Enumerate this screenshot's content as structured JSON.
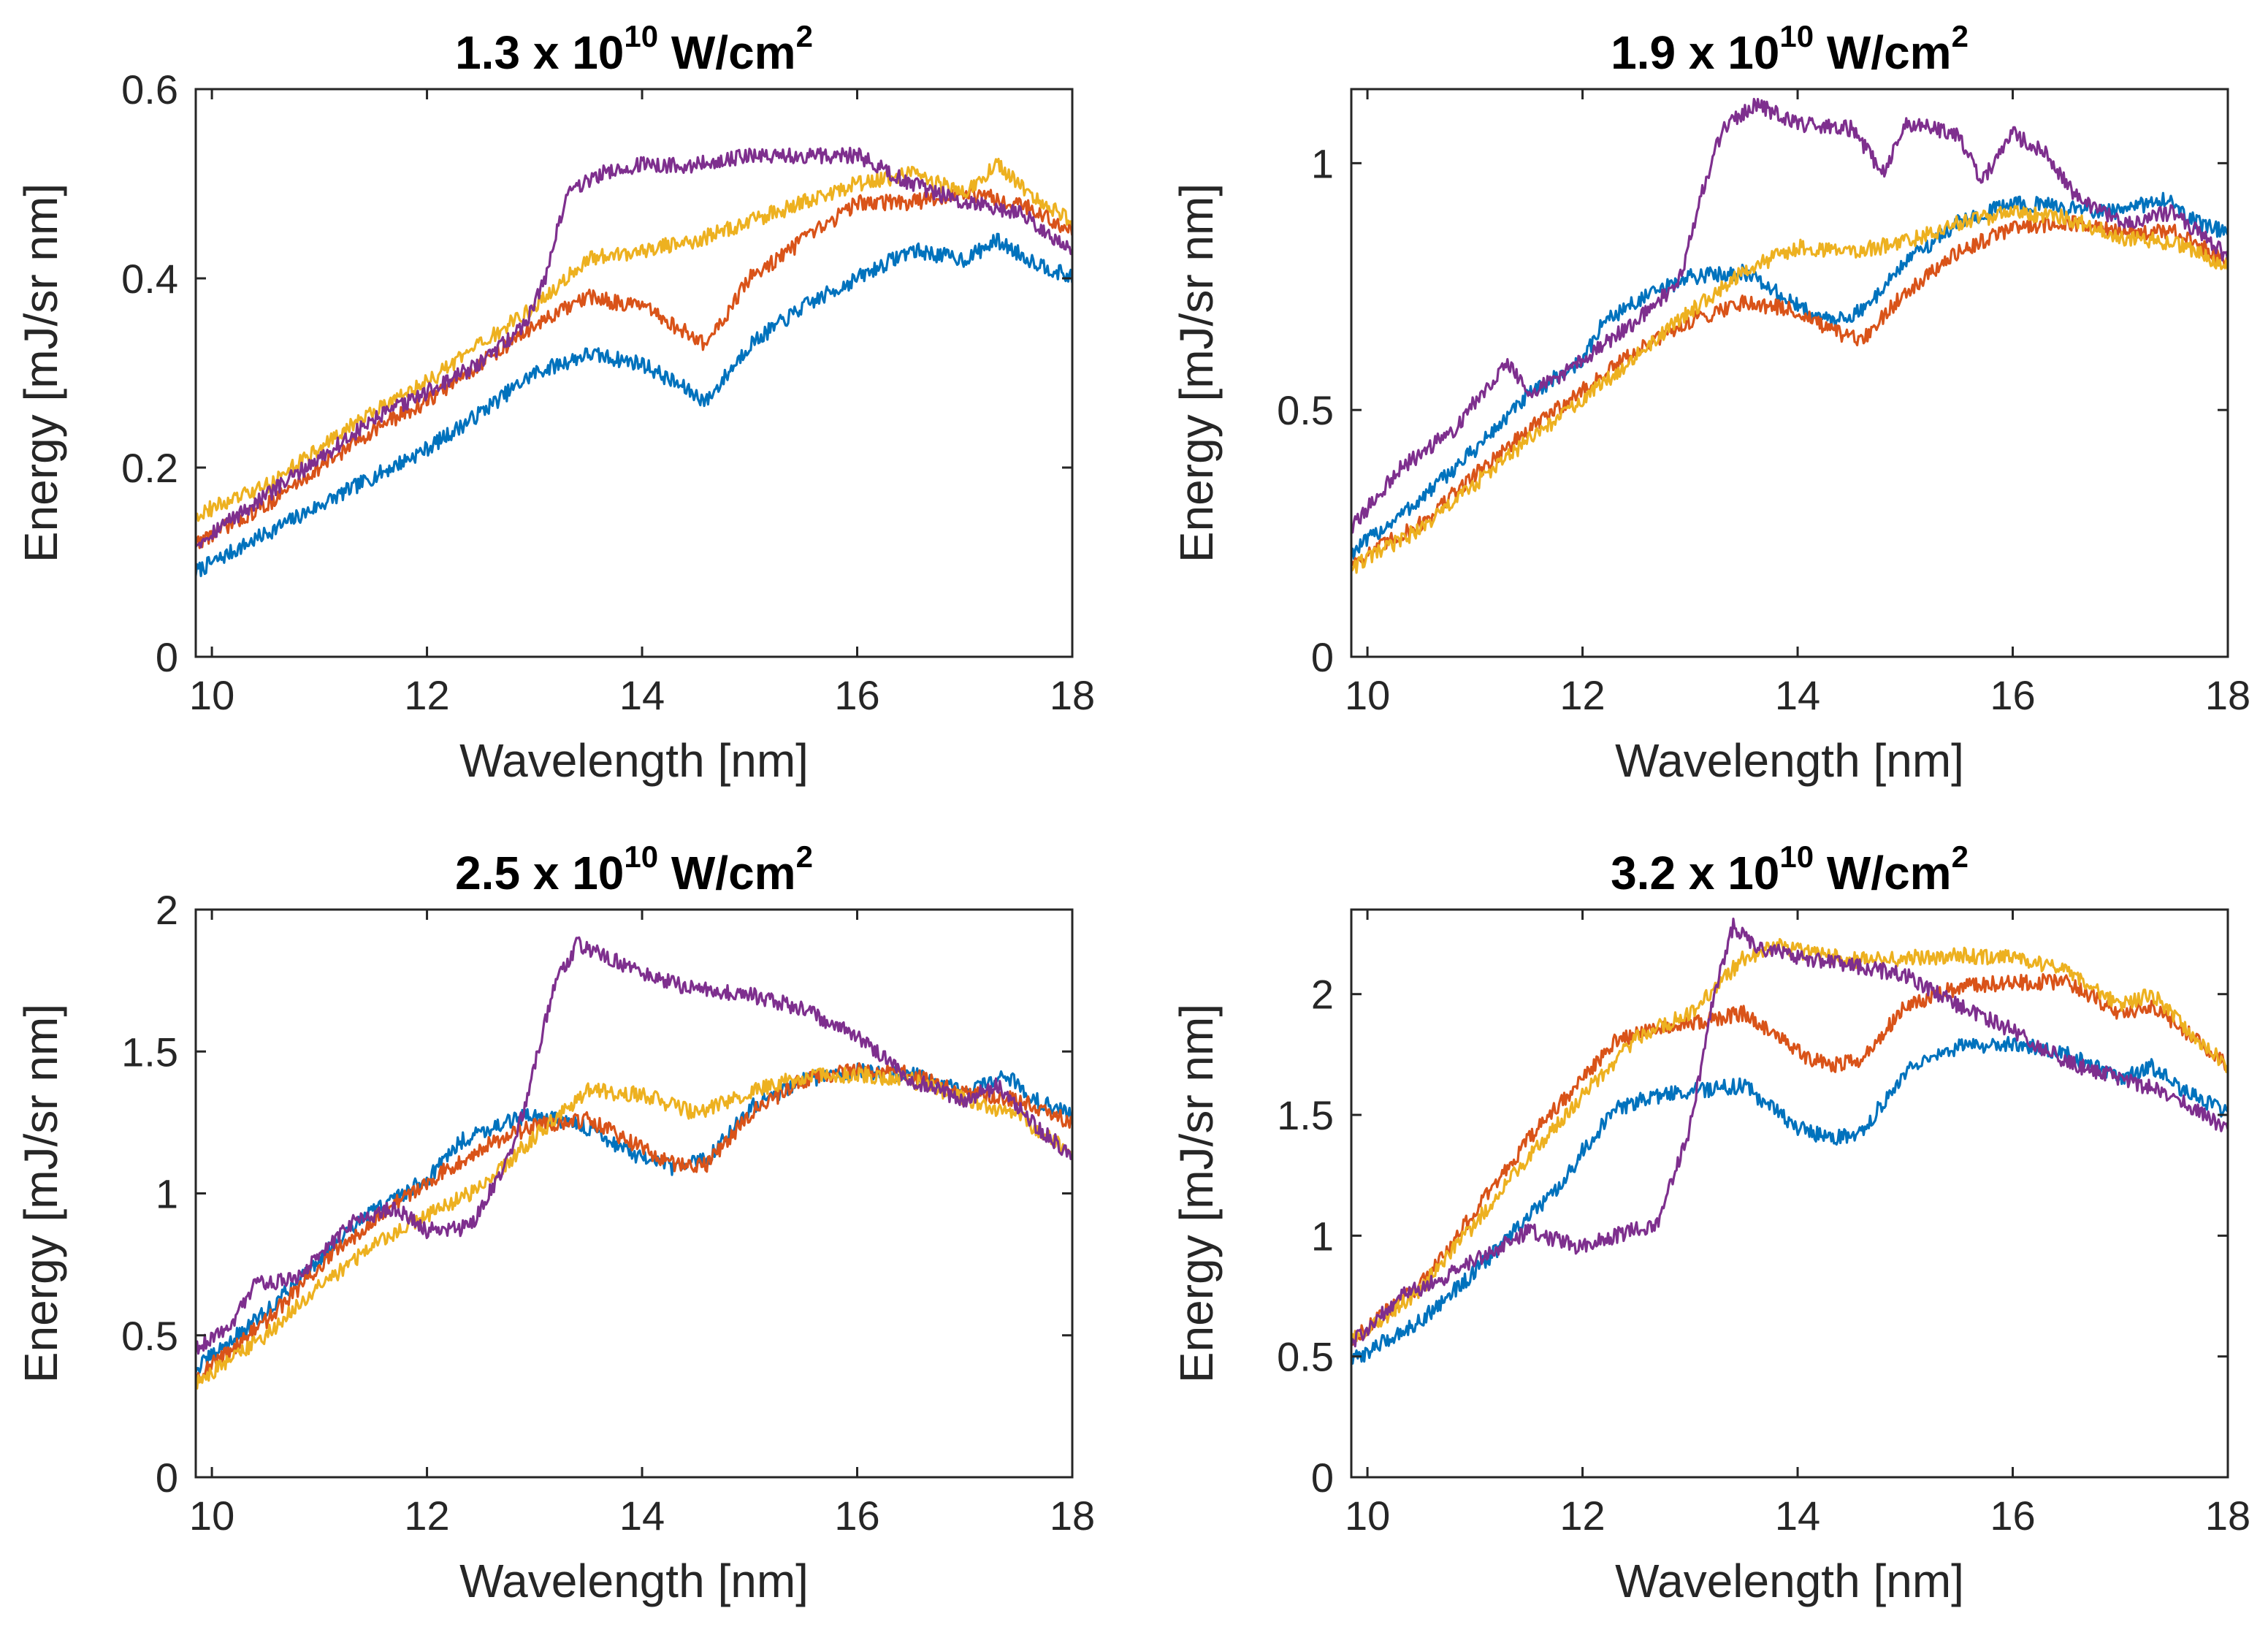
{
  "chart_data": [
    {
      "type": "line",
      "title": {
        "base": "1.3 x 10",
        "exponent": "10",
        "unit": " W/cm",
        "unit_exponent": "2"
      },
      "xlabel": "Wavelength [nm]",
      "ylabel": "Energy [mJ/sr nm]",
      "xlim": [
        9.85,
        18
      ],
      "ylim": [
        0,
        0.6
      ],
      "xticks": [
        "10",
        "12",
        "14",
        "16",
        "18"
      ],
      "yticks": [
        "0",
        "0.2",
        "0.4",
        "0.6"
      ],
      "grid": false,
      "series": [
        {
          "color": "#0072BD",
          "x": [
            9.85,
            10.5,
            11.0,
            11.5,
            12.0,
            12.4,
            13.0,
            13.5,
            14.0,
            14.3,
            14.6,
            15.0,
            15.5,
            16.0,
            16.5,
            17.0,
            17.3,
            17.6,
            18.0
          ],
          "y": [
            0.09,
            0.13,
            0.16,
            0.19,
            0.22,
            0.25,
            0.3,
            0.32,
            0.31,
            0.29,
            0.27,
            0.33,
            0.37,
            0.4,
            0.43,
            0.42,
            0.44,
            0.42,
            0.4
          ]
        },
        {
          "color": "#D95319",
          "x": [
            9.85,
            10.5,
            11.0,
            11.5,
            12.0,
            12.5,
            13.0,
            13.5,
            14.0,
            14.3,
            14.6,
            15.0,
            15.5,
            16.0,
            16.5,
            17.0,
            17.5,
            18.0
          ],
          "y": [
            0.12,
            0.16,
            0.2,
            0.24,
            0.27,
            0.31,
            0.35,
            0.38,
            0.37,
            0.35,
            0.33,
            0.4,
            0.44,
            0.48,
            0.48,
            0.49,
            0.48,
            0.45
          ]
        },
        {
          "color": "#EDB120",
          "x": [
            9.85,
            10.5,
            11.0,
            11.5,
            12.0,
            12.5,
            13.0,
            13.5,
            14.0,
            14.5,
            15.0,
            15.5,
            16.0,
            16.5,
            17.0,
            17.3,
            17.6,
            18.0
          ],
          "y": [
            0.15,
            0.18,
            0.22,
            0.26,
            0.29,
            0.33,
            0.37,
            0.42,
            0.43,
            0.44,
            0.46,
            0.48,
            0.5,
            0.51,
            0.49,
            0.52,
            0.49,
            0.46
          ]
        },
        {
          "color": "#7E2F8E",
          "x": [
            9.85,
            10.5,
            11.0,
            11.5,
            12.0,
            12.5,
            12.9,
            13.1,
            13.3,
            13.6,
            14.0,
            14.5,
            15.0,
            15.5,
            16.0,
            16.5,
            17.0,
            17.5,
            18.0
          ],
          "y": [
            0.12,
            0.17,
            0.21,
            0.25,
            0.28,
            0.31,
            0.35,
            0.4,
            0.49,
            0.51,
            0.52,
            0.52,
            0.53,
            0.53,
            0.53,
            0.5,
            0.48,
            0.47,
            0.43
          ]
        }
      ]
    },
    {
      "type": "line",
      "title": {
        "base": "1.9 x 10",
        "exponent": "10",
        "unit": " W/cm",
        "unit_exponent": "2"
      },
      "xlabel": "Wavelength [nm]",
      "ylabel": "Energy [mJ/sr nm]",
      "xlim": [
        9.85,
        18
      ],
      "ylim": [
        0,
        1.15
      ],
      "xticks": [
        "10",
        "12",
        "14",
        "16",
        "18"
      ],
      "yticks": [
        "0",
        "0.5",
        "1"
      ],
      "grid": false,
      "series": [
        {
          "color": "#0072BD",
          "x": [
            9.85,
            10.5,
            11.0,
            11.5,
            12.0,
            12.2,
            12.5,
            13.0,
            13.5,
            14.0,
            14.3,
            14.6,
            15.0,
            15.5,
            16.0,
            16.5,
            17.0,
            17.4,
            17.7,
            18.0
          ],
          "y": [
            0.21,
            0.32,
            0.42,
            0.53,
            0.6,
            0.68,
            0.72,
            0.77,
            0.78,
            0.71,
            0.68,
            0.7,
            0.8,
            0.88,
            0.92,
            0.91,
            0.9,
            0.93,
            0.88,
            0.86
          ]
        },
        {
          "color": "#D95319",
          "x": [
            9.85,
            10.5,
            11.0,
            11.5,
            12.0,
            12.5,
            13.0,
            13.5,
            14.0,
            14.3,
            14.6,
            15.0,
            15.5,
            16.0,
            16.5,
            17.0,
            17.5,
            18.0
          ],
          "y": [
            0.19,
            0.27,
            0.37,
            0.46,
            0.54,
            0.62,
            0.68,
            0.72,
            0.7,
            0.66,
            0.64,
            0.74,
            0.82,
            0.87,
            0.88,
            0.86,
            0.86,
            0.8
          ]
        },
        {
          "color": "#EDB120",
          "x": [
            9.85,
            10.5,
            11.0,
            11.5,
            12.0,
            12.5,
            13.0,
            13.5,
            14.0,
            14.5,
            15.0,
            15.5,
            16.0,
            16.5,
            17.0,
            17.5,
            18.0
          ],
          "y": [
            0.18,
            0.26,
            0.35,
            0.44,
            0.52,
            0.61,
            0.7,
            0.78,
            0.83,
            0.82,
            0.84,
            0.88,
            0.9,
            0.89,
            0.85,
            0.84,
            0.79
          ]
        },
        {
          "color": "#7E2F8E",
          "x": [
            9.85,
            10.3,
            10.8,
            11.3,
            11.5,
            12.0,
            12.5,
            12.9,
            13.1,
            13.3,
            13.6,
            14.0,
            14.5,
            14.8,
            15.0,
            15.5,
            15.7,
            16.0,
            16.3,
            16.6,
            17.0,
            17.5,
            18.0
          ],
          "y": [
            0.26,
            0.38,
            0.46,
            0.6,
            0.53,
            0.6,
            0.68,
            0.76,
            0.93,
            1.07,
            1.12,
            1.08,
            1.07,
            0.98,
            1.08,
            1.06,
            0.96,
            1.06,
            1.02,
            0.93,
            0.88,
            0.9,
            0.81
          ]
        }
      ]
    },
    {
      "type": "line",
      "title": {
        "base": "2.5 x 10",
        "exponent": "10",
        "unit": " W/cm",
        "unit_exponent": "2"
      },
      "xlabel": "Wavelength [nm]",
      "ylabel": "Energy [mJ/sr nm]",
      "xlim": [
        9.85,
        18
      ],
      "ylim": [
        0,
        2
      ],
      "xticks": [
        "10",
        "12",
        "14",
        "16",
        "18"
      ],
      "yticks": [
        "0",
        "0.5",
        "1",
        "1.5",
        "2"
      ],
      "grid": false,
      "series": [
        {
          "color": "#0072BD",
          "x": [
            9.85,
            10.5,
            11.0,
            11.5,
            12.0,
            12.3,
            12.5,
            13.0,
            13.5,
            14.0,
            14.3,
            14.6,
            15.0,
            15.5,
            16.0,
            16.5,
            17.0,
            17.4,
            17.7,
            18.0
          ],
          "y": [
            0.38,
            0.58,
            0.77,
            0.94,
            1.05,
            1.18,
            1.22,
            1.28,
            1.23,
            1.12,
            1.09,
            1.12,
            1.3,
            1.4,
            1.43,
            1.42,
            1.36,
            1.41,
            1.32,
            1.28
          ]
        },
        {
          "color": "#D95319",
          "x": [
            9.85,
            10.5,
            11.0,
            11.5,
            12.0,
            12.5,
            13.0,
            13.5,
            14.0,
            14.3,
            14.6,
            15.0,
            15.5,
            16.0,
            16.5,
            17.0,
            17.5,
            18.0
          ],
          "y": [
            0.35,
            0.55,
            0.74,
            0.91,
            1.04,
            1.16,
            1.24,
            1.26,
            1.16,
            1.1,
            1.1,
            1.28,
            1.4,
            1.44,
            1.42,
            1.35,
            1.33,
            1.25
          ]
        },
        {
          "color": "#EDB120",
          "x": [
            9.85,
            10.5,
            11.0,
            11.5,
            12.0,
            12.5,
            13.0,
            13.5,
            14.0,
            14.5,
            15.0,
            15.5,
            16.0,
            16.5,
            17.0,
            17.5,
            18.0
          ],
          "y": [
            0.33,
            0.5,
            0.67,
            0.82,
            0.92,
            1.02,
            1.2,
            1.36,
            1.35,
            1.28,
            1.36,
            1.41,
            1.42,
            1.4,
            1.33,
            1.27,
            1.14
          ]
        },
        {
          "color": "#7E2F8E",
          "x": [
            9.85,
            10.2,
            10.4,
            10.8,
            11.3,
            11.7,
            12.0,
            12.4,
            12.8,
            13.0,
            13.2,
            13.4,
            13.7,
            14.0,
            14.5,
            15.0,
            15.5,
            16.0,
            16.5,
            17.0,
            17.3,
            17.6,
            18.0
          ],
          "y": [
            0.45,
            0.55,
            0.68,
            0.7,
            0.9,
            0.95,
            0.87,
            0.88,
            1.15,
            1.45,
            1.75,
            1.88,
            1.83,
            1.77,
            1.72,
            1.7,
            1.65,
            1.55,
            1.4,
            1.33,
            1.38,
            1.26,
            1.13
          ]
        }
      ]
    },
    {
      "type": "line",
      "title": {
        "base": "3.2 x 10",
        "exponent": "10",
        "unit": " W/cm",
        "unit_exponent": "2"
      },
      "xlabel": "Wavelength [nm]",
      "ylabel": "Energy [mJ/sr nm]",
      "xlim": [
        9.85,
        18
      ],
      "ylim": [
        0,
        2.35
      ],
      "xticks": [
        "10",
        "12",
        "14",
        "16",
        "18"
      ],
      "yticks": [
        "0",
        "0.5",
        "1",
        "1.5",
        "2"
      ],
      "grid": false,
      "series": [
        {
          "color": "#0072BD",
          "x": [
            9.85,
            10.5,
            11.0,
            11.5,
            11.8,
            12.0,
            12.3,
            12.6,
            13.0,
            13.5,
            14.0,
            14.3,
            14.6,
            15.0,
            15.5,
            16.0,
            16.5,
            17.0,
            17.3,
            17.6,
            18.0
          ],
          "y": [
            0.48,
            0.65,
            0.85,
            1.08,
            1.2,
            1.35,
            1.52,
            1.57,
            1.6,
            1.62,
            1.45,
            1.4,
            1.43,
            1.68,
            1.78,
            1.8,
            1.75,
            1.65,
            1.7,
            1.6,
            1.51
          ]
        },
        {
          "color": "#D95319",
          "x": [
            9.85,
            10.5,
            11.0,
            11.5,
            12.0,
            12.3,
            12.6,
            13.0,
            13.5,
            14.0,
            14.3,
            14.6,
            15.0,
            15.5,
            16.0,
            16.5,
            17.0,
            17.3,
            17.6,
            18.0
          ],
          "y": [
            0.57,
            0.8,
            1.1,
            1.4,
            1.65,
            1.8,
            1.86,
            1.88,
            1.92,
            1.76,
            1.7,
            1.73,
            1.95,
            2.03,
            2.05,
            2.05,
            1.92,
            1.95,
            1.85,
            1.7
          ]
        },
        {
          "color": "#EDB120",
          "x": [
            9.85,
            10.5,
            11.0,
            11.5,
            12.0,
            12.5,
            13.0,
            13.5,
            13.8,
            14.0,
            14.5,
            15.0,
            15.5,
            16.0,
            16.5,
            17.0,
            17.3,
            17.6,
            18.0
          ],
          "y": [
            0.56,
            0.78,
            1.05,
            1.33,
            1.58,
            1.82,
            1.92,
            2.15,
            2.2,
            2.18,
            2.14,
            2.15,
            2.16,
            2.15,
            2.1,
            1.95,
            2.0,
            1.86,
            1.7
          ]
        },
        {
          "color": "#7E2F8E",
          "x": [
            9.85,
            10.3,
            10.7,
            11.0,
            11.5,
            12.0,
            12.3,
            12.7,
            13.0,
            13.2,
            13.4,
            13.6,
            14.0,
            14.5,
            15.0,
            15.5,
            16.0,
            16.5,
            17.0,
            17.5,
            18.0
          ],
          "y": [
            0.55,
            0.75,
            0.82,
            0.9,
            1.02,
            0.95,
            1.0,
            1.05,
            1.45,
            1.95,
            2.28,
            2.2,
            2.15,
            2.12,
            2.08,
            1.95,
            1.85,
            1.72,
            1.65,
            1.58,
            1.44
          ]
        }
      ]
    }
  ]
}
